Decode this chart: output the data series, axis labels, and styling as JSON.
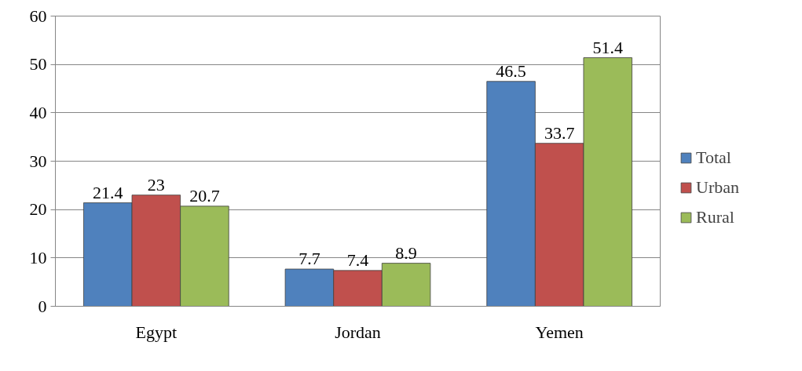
{
  "chart_data": {
    "type": "bar",
    "categories": [
      "Egypt",
      "Jordan",
      "Yemen"
    ],
    "series": [
      {
        "name": "Total",
        "color": "#4f81bd",
        "values": [
          21.4,
          7.7,
          46.5
        ]
      },
      {
        "name": "Urban",
        "color": "#c0504d",
        "values": [
          23,
          7.4,
          33.7
        ]
      },
      {
        "name": "Rural",
        "color": "#9bbb59",
        "values": [
          20.7,
          8.9,
          51.4
        ]
      }
    ],
    "ylim": [
      0,
      60
    ],
    "yticks": [
      0,
      10,
      20,
      30,
      40,
      50,
      60
    ],
    "grid": "y",
    "legend": "right",
    "data_labels": true
  }
}
